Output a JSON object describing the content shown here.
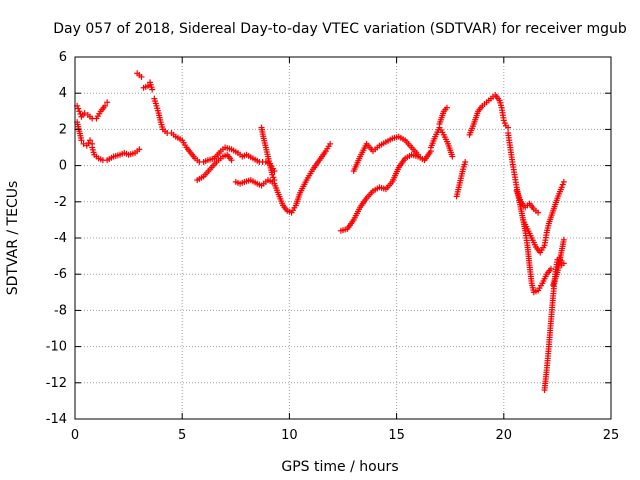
{
  "chart_data": {
    "type": "scatter",
    "title": "Day 057 of 2018, Sidereal Day-to-day VTEC variation (SDTVAR) for receiver mgub",
    "xlabel": "GPS time / hours",
    "ylabel": "SDTVAR / TECUs",
    "xlim": [
      0,
      25
    ],
    "ylim": [
      -14,
      6
    ],
    "xticks": [
      0,
      5,
      10,
      15,
      20,
      25
    ],
    "yticks": [
      -14,
      -12,
      -10,
      -8,
      -6,
      -4,
      -2,
      0,
      2,
      4,
      6
    ],
    "grid": true,
    "legend": "none",
    "marker": "plus",
    "color": "#ff0000",
    "series": [
      {
        "points": [
          [
            0.1,
            3.3
          ],
          [
            0.2,
            3.0
          ],
          [
            0.3,
            2.7
          ],
          [
            0.45,
            2.9
          ],
          [
            0.6,
            2.8
          ],
          [
            0.8,
            2.6
          ],
          [
            1.0,
            2.6
          ],
          [
            1.2,
            3.0
          ],
          [
            1.4,
            3.3
          ],
          [
            1.5,
            3.5
          ]
        ]
      },
      {
        "points": [
          [
            0.1,
            2.4
          ],
          [
            0.2,
            1.9
          ],
          [
            0.3,
            1.4
          ],
          [
            0.4,
            1.2
          ],
          [
            0.55,
            1.1
          ],
          [
            0.7,
            1.4
          ],
          [
            0.8,
            1.2
          ]
        ]
      },
      {
        "points": [
          [
            0.8,
            1.0
          ],
          [
            0.9,
            0.6
          ],
          [
            1.1,
            0.4
          ],
          [
            1.3,
            0.3
          ],
          [
            1.5,
            0.3
          ],
          [
            1.8,
            0.5
          ],
          [
            2.1,
            0.6
          ],
          [
            2.3,
            0.7
          ],
          [
            2.5,
            0.6
          ],
          [
            2.8,
            0.7
          ],
          [
            3.0,
            0.9
          ]
        ]
      },
      {
        "points": [
          [
            2.9,
            5.1
          ],
          [
            3.1,
            4.9
          ]
        ]
      },
      {
        "points": [
          [
            3.2,
            4.3
          ],
          [
            3.4,
            4.4
          ],
          [
            3.5,
            4.6
          ],
          [
            3.6,
            4.2
          ]
        ]
      },
      {
        "points": [
          [
            3.7,
            3.7
          ],
          [
            3.8,
            3.3
          ],
          [
            3.9,
            2.9
          ],
          [
            4.0,
            2.4
          ],
          [
            4.1,
            2.0
          ],
          [
            4.3,
            1.8
          ],
          [
            4.5,
            1.8
          ],
          [
            4.7,
            1.6
          ],
          [
            5.0,
            1.4
          ],
          [
            5.2,
            1.0
          ],
          [
            5.4,
            0.7
          ],
          [
            5.6,
            0.4
          ],
          [
            5.8,
            0.2
          ],
          [
            6.0,
            0.2
          ],
          [
            6.2,
            0.3
          ],
          [
            6.5,
            0.4
          ],
          [
            6.8,
            0.8
          ],
          [
            7.0,
            1.0
          ],
          [
            7.3,
            0.9
          ],
          [
            7.6,
            0.7
          ],
          [
            7.8,
            0.5
          ],
          [
            8.0,
            0.6
          ],
          [
            8.3,
            0.4
          ],
          [
            8.6,
            0.2
          ],
          [
            8.9,
            0.2
          ],
          [
            9.1,
            0.1
          ],
          [
            9.3,
            -0.3
          ]
        ]
      },
      {
        "points": [
          [
            5.7,
            -0.8
          ],
          [
            6.0,
            -0.6
          ],
          [
            6.3,
            -0.2
          ],
          [
            6.6,
            0.2
          ],
          [
            6.9,
            0.5
          ],
          [
            7.1,
            0.6
          ],
          [
            7.3,
            0.3
          ]
        ]
      },
      {
        "points": [
          [
            7.5,
            -0.9
          ],
          [
            7.7,
            -1.0
          ],
          [
            7.9,
            -0.9
          ],
          [
            8.2,
            -0.8
          ],
          [
            8.5,
            -1.0
          ],
          [
            8.7,
            -1.1
          ],
          [
            9.0,
            -0.8
          ],
          [
            9.2,
            -0.9
          ]
        ]
      },
      {
        "points": [
          [
            8.7,
            2.1
          ],
          [
            8.8,
            1.5
          ],
          [
            8.9,
            1.0
          ],
          [
            9.0,
            0.5
          ],
          [
            9.1,
            0.0
          ],
          [
            9.2,
            -0.5
          ],
          [
            9.3,
            -0.8
          ]
        ]
      },
      {
        "points": [
          [
            9.3,
            -1.0
          ],
          [
            9.5,
            -1.6
          ],
          [
            9.7,
            -2.2
          ],
          [
            9.9,
            -2.5
          ],
          [
            10.1,
            -2.6
          ],
          [
            10.3,
            -2.2
          ],
          [
            10.5,
            -1.5
          ],
          [
            10.8,
            -0.8
          ],
          [
            11.1,
            -0.2
          ],
          [
            11.4,
            0.3
          ],
          [
            11.7,
            0.8
          ],
          [
            11.9,
            1.2
          ]
        ]
      },
      {
        "points": [
          [
            12.4,
            -3.6
          ],
          [
            12.7,
            -3.5
          ],
          [
            13.0,
            -3.0
          ],
          [
            13.3,
            -2.3
          ],
          [
            13.6,
            -1.8
          ],
          [
            13.9,
            -1.4
          ],
          [
            14.2,
            -1.2
          ],
          [
            14.5,
            -1.3
          ],
          [
            14.8,
            -0.9
          ],
          [
            15.1,
            -0.1
          ],
          [
            15.4,
            0.4
          ],
          [
            15.7,
            0.6
          ],
          [
            16.0,
            0.5
          ],
          [
            16.3,
            0.3
          ],
          [
            16.6,
            0.8
          ]
        ]
      },
      {
        "points": [
          [
            13.0,
            -0.3
          ],
          [
            13.3,
            0.5
          ],
          [
            13.6,
            1.2
          ],
          [
            13.9,
            0.8
          ],
          [
            14.2,
            1.1
          ],
          [
            14.5,
            1.3
          ],
          [
            14.8,
            1.5
          ],
          [
            15.1,
            1.6
          ],
          [
            15.4,
            1.4
          ],
          [
            15.7,
            1.0
          ],
          [
            16.0,
            0.6
          ]
        ]
      },
      {
        "points": [
          [
            16.6,
            1.0
          ],
          [
            16.8,
            1.6
          ],
          [
            17.0,
            2.1
          ],
          [
            17.2,
            1.7
          ],
          [
            17.4,
            1.2
          ],
          [
            17.6,
            0.5
          ]
        ]
      },
      {
        "points": [
          [
            17.0,
            2.3
          ],
          [
            17.2,
            3.0
          ],
          [
            17.35,
            3.2
          ]
        ]
      },
      {
        "points": [
          [
            17.8,
            -1.7
          ],
          [
            17.9,
            -1.2
          ],
          [
            18.0,
            -0.7
          ],
          [
            18.1,
            -0.2
          ],
          [
            18.2,
            0.2
          ]
        ]
      },
      {
        "points": [
          [
            18.4,
            1.7
          ],
          [
            18.6,
            2.3
          ],
          [
            18.8,
            3.0
          ],
          [
            19.0,
            3.3
          ],
          [
            19.2,
            3.5
          ],
          [
            19.4,
            3.7
          ],
          [
            19.6,
            3.9
          ],
          [
            19.8,
            3.6
          ],
          [
            19.9,
            3.2
          ],
          [
            20.0,
            2.5
          ],
          [
            20.1,
            2.2
          ],
          [
            20.2,
            2.1
          ]
        ]
      },
      {
        "points": [
          [
            20.2,
            1.8
          ],
          [
            20.3,
            1.0
          ],
          [
            20.4,
            0.2
          ],
          [
            20.5,
            -0.5
          ],
          [
            20.6,
            -1.2
          ],
          [
            20.7,
            -1.8
          ],
          [
            20.8,
            -2.4
          ],
          [
            20.9,
            -3.0
          ],
          [
            21.0,
            -3.6
          ],
          [
            21.1,
            -4.4
          ],
          [
            21.2,
            -5.5
          ],
          [
            21.3,
            -6.5
          ],
          [
            21.4,
            -7.0
          ],
          [
            21.6,
            -6.9
          ],
          [
            21.8,
            -6.5
          ],
          [
            22.0,
            -6.0
          ],
          [
            22.2,
            -5.7
          ]
        ]
      },
      {
        "points": [
          [
            20.6,
            -1.4
          ],
          [
            20.8,
            -2.0
          ],
          [
            21.0,
            -2.3
          ],
          [
            21.2,
            -2.1
          ],
          [
            21.4,
            -2.4
          ],
          [
            21.6,
            -2.6
          ]
        ]
      },
      {
        "points": [
          [
            20.9,
            -3.0
          ],
          [
            21.1,
            -3.5
          ],
          [
            21.3,
            -4.0
          ],
          [
            21.5,
            -4.5
          ],
          [
            21.7,
            -4.8
          ],
          [
            21.9,
            -4.4
          ],
          [
            22.0,
            -3.7
          ],
          [
            22.1,
            -3.2
          ],
          [
            22.3,
            -2.5
          ],
          [
            22.5,
            -1.8
          ],
          [
            22.7,
            -1.2
          ],
          [
            22.8,
            -0.9
          ]
        ]
      },
      {
        "points": [
          [
            21.9,
            -12.4
          ],
          [
            22.0,
            -11.3
          ],
          [
            22.1,
            -10.0
          ],
          [
            22.2,
            -8.6
          ],
          [
            22.3,
            -7.2
          ],
          [
            22.4,
            -6.0
          ],
          [
            22.5,
            -5.2
          ],
          [
            22.6,
            -5.1
          ],
          [
            22.7,
            -5.5
          ],
          [
            22.8,
            -5.4
          ]
        ]
      },
      {
        "points": [
          [
            22.3,
            -6.6
          ],
          [
            22.5,
            -5.9
          ],
          [
            22.7,
            -4.7
          ],
          [
            22.8,
            -4.1
          ]
        ]
      }
    ]
  }
}
